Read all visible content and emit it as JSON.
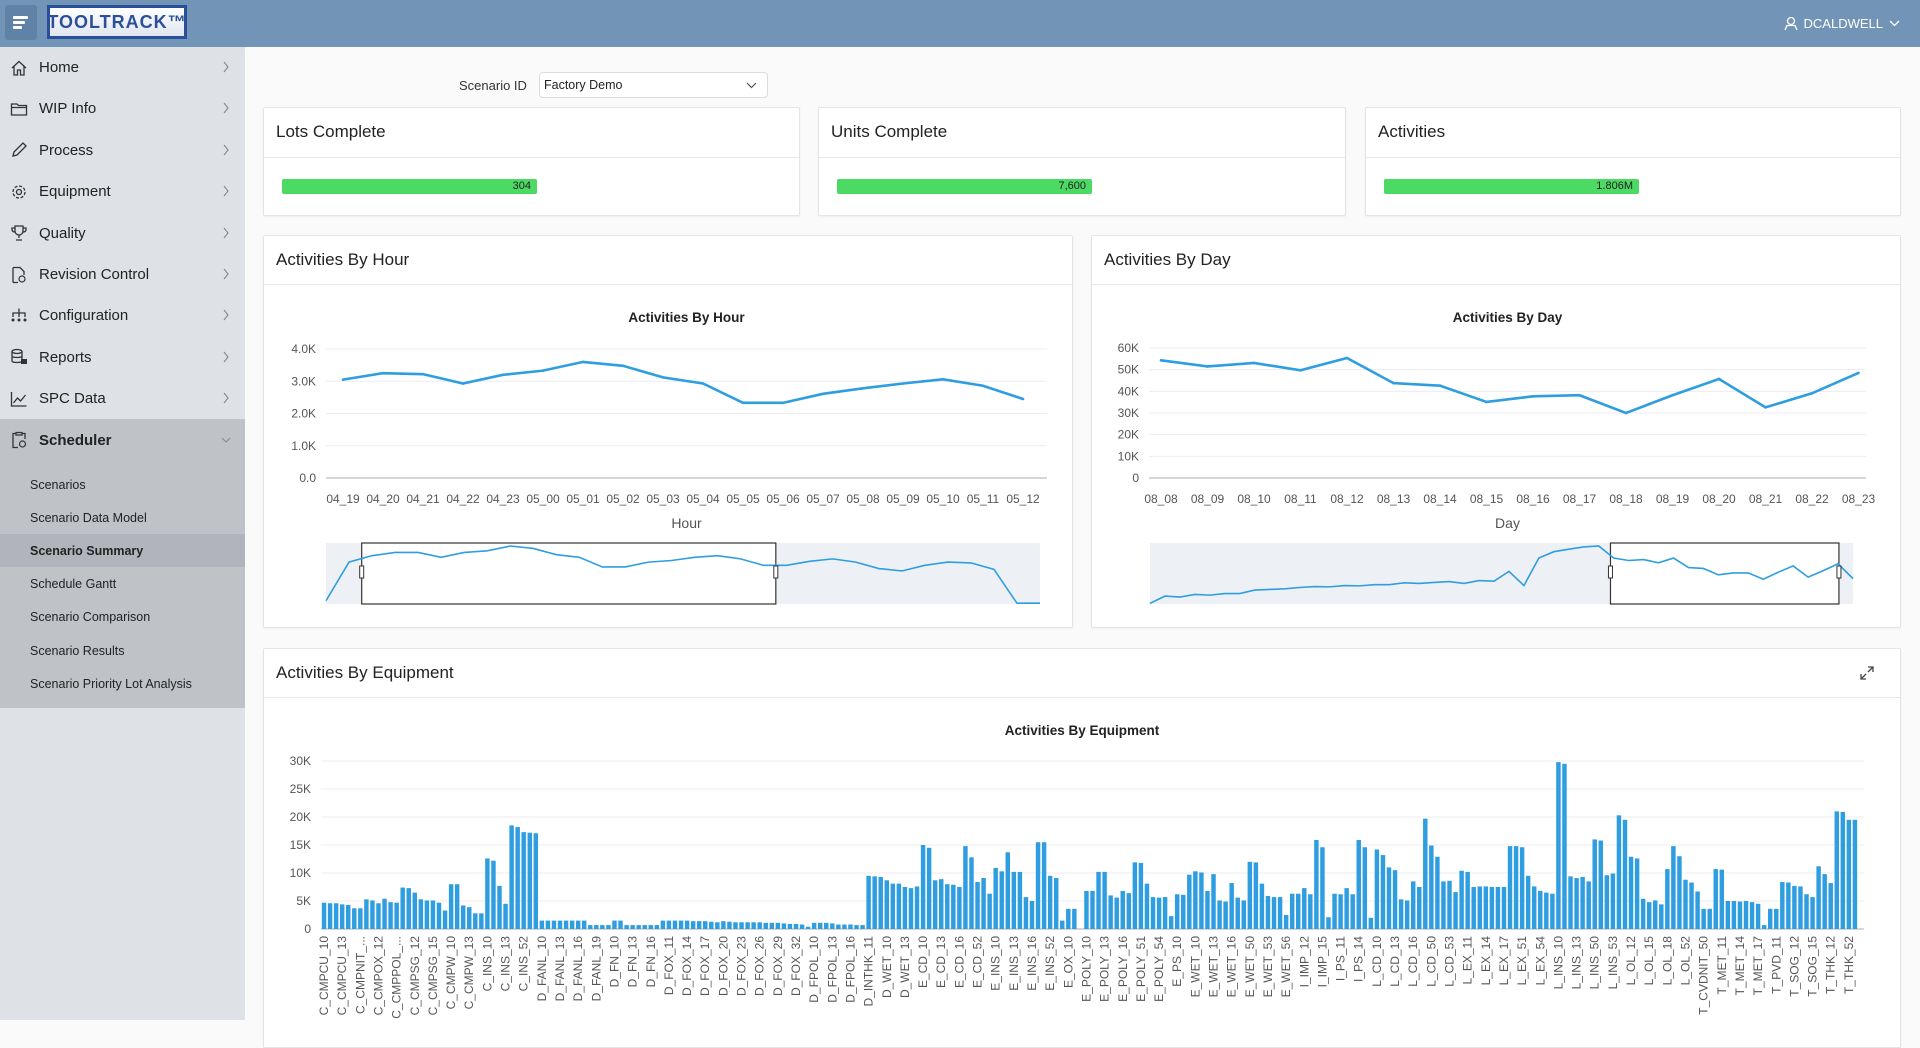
{
  "header": {
    "logo_text": "TOOLTRACK™",
    "user": "DCALDWELL",
    "colors": {
      "header_bg": "#7194b7",
      "accent": "#2e9ee0",
      "kpi_green": "#4cd964"
    }
  },
  "sidebar": {
    "items": [
      {
        "label": "Home",
        "icon": "home-icon"
      },
      {
        "label": "WIP Info",
        "icon": "folder-icon"
      },
      {
        "label": "Process",
        "icon": "pencil-icon"
      },
      {
        "label": "Equipment",
        "icon": "gear-icon"
      },
      {
        "label": "Quality",
        "icon": "trophy-icon"
      },
      {
        "label": "Revision Control",
        "icon": "document-clock-icon"
      },
      {
        "label": "Configuration",
        "icon": "hierarchy-icon"
      },
      {
        "label": "Reports",
        "icon": "report-icon"
      },
      {
        "label": "SPC Data",
        "icon": "line-chart-icon"
      },
      {
        "label": "Scheduler",
        "icon": "clipboard-clock-icon",
        "expanded": true
      }
    ],
    "scheduler_items": [
      "Scenarios",
      "Scenario Data Model",
      "Scenario Summary",
      "Schedule Gantt",
      "Scenario Comparison",
      "Scenario Results",
      "Scenario Priority Lot Analysis"
    ],
    "selected": "Scenario Summary"
  },
  "filter": {
    "label": "Scenario ID",
    "value": "Factory Demo"
  },
  "kpis": [
    {
      "title": "Lots Complete",
      "value": "304",
      "fill_percent": 100
    },
    {
      "title": "Units Complete",
      "value": "7,600",
      "fill_percent": 100
    },
    {
      "title": "Activities",
      "value": "1.806M",
      "fill_percent": 100
    }
  ],
  "chart_data": [
    {
      "card_title": "Activities By Hour",
      "title": "Activities By Hour",
      "type": "line",
      "xlabel": "Hour",
      "ylabel": "",
      "x": [
        "04_19",
        "04_20",
        "04_21",
        "04_22",
        "04_23",
        "05_00",
        "05_01",
        "05_02",
        "05_03",
        "05_04",
        "05_05",
        "05_06",
        "05_07",
        "05_08",
        "05_09",
        "05_10",
        "05_11",
        "05_12"
      ],
      "values": [
        3050,
        3250,
        3220,
        2930,
        3200,
        3330,
        3600,
        3480,
        3120,
        2930,
        2330,
        2330,
        2610,
        2780,
        2930,
        3060,
        2860,
        2450
      ],
      "ylim": [
        0,
        4000
      ],
      "yticks": [
        "0.0",
        "1.0K",
        "2.0K",
        "3.0K",
        "4.0K"
      ],
      "grid": true,
      "navigator": {
        "values": [
          200,
          2600,
          3000,
          3200,
          3200,
          2900,
          3200,
          3300,
          3600,
          3450,
          3060,
          2900,
          2300,
          2300,
          2600,
          2700,
          2900,
          3000,
          2800,
          2400,
          2400,
          2650,
          2800,
          2600,
          2200,
          2050,
          2400,
          2600,
          2550,
          2150,
          50,
          50
        ],
        "window": [
          0.05,
          0.63
        ]
      }
    },
    {
      "card_title": "Activities By Day",
      "title": "Activities By Day",
      "type": "line",
      "xlabel": "Day",
      "ylabel": "",
      "x": [
        "08_08",
        "08_09",
        "08_10",
        "08_11",
        "08_12",
        "08_13",
        "08_14",
        "08_15",
        "08_16",
        "08_17",
        "08_18",
        "08_19",
        "08_20",
        "08_21",
        "08_22",
        "08_23"
      ],
      "values": [
        54300,
        51500,
        53100,
        49700,
        55400,
        43800,
        42600,
        35100,
        37700,
        38200,
        30000,
        38200,
        45700,
        32600,
        39100,
        48500
      ],
      "ylim": [
        0,
        60000
      ],
      "yticks": [
        "0",
        "10K",
        "20K",
        "30K",
        "40K",
        "50K",
        "60K"
      ],
      "grid": true,
      "navigator": {
        "values": [
          700,
          8700,
          7700,
          10500,
          9800,
          11500,
          11500,
          15400,
          16100,
          16800,
          18200,
          19200,
          18900,
          20300,
          20000,
          21300,
          21300,
          23400,
          22700,
          23800,
          24800,
          22700,
          25900,
          25200,
          36000,
          20300,
          50700,
          57700,
          60500,
          63000,
          64000,
          50700,
          48000,
          49000,
          45500,
          50700,
          40200,
          39200,
          32200,
          34300,
          34300,
          27300,
          35000,
          42000,
          29700,
          36700,
          44400,
          28000
        ],
        "window": [
          0.655,
          0.98
        ]
      }
    },
    {
      "card_title": "Activities By Equipment",
      "title": "Activities By Equipment",
      "type": "bar",
      "xlabel": "",
      "ylabel": "",
      "ylim": [
        0,
        30000
      ],
      "yticks": [
        "0",
        "5K",
        "10K",
        "15K",
        "20K",
        "25K",
        "30K"
      ],
      "grid": true,
      "tick_labels": [
        "C_CMPCU_10",
        "C_CMPCU_13",
        "C_CMPNIT_...",
        "C_CMPOX_12",
        "C_CMPPOL_...",
        "C_CMPSG_12",
        "C_CMPSG_15",
        "C_CMPW_10",
        "C_CMPW_13",
        "C_INS_10",
        "C_INS_13",
        "C_INS_52",
        "D_FANL_10",
        "D_FANL_13",
        "D_FANL_16",
        "D_FANL_19",
        "D_FN_10",
        "D_FN_13",
        "D_FN_16",
        "D_FOX_11",
        "D_FOX_14",
        "D_FOX_17",
        "D_FOX_20",
        "D_FOX_23",
        "D_FOX_26",
        "D_FOX_29",
        "D_FOX_32",
        "D_FPOL_10",
        "D_FPOL_13",
        "D_FPOL_16",
        "D_INTHK_11",
        "D_WET_10",
        "D_WET_13",
        "E_CD_10",
        "E_CD_13",
        "E_CD_16",
        "E_CD_52",
        "E_INS_10",
        "E_INS_13",
        "E_INS_16",
        "E_INS_52",
        "E_OX_10",
        "E_POLY_10",
        "E_POLY_13",
        "E_POLY_16",
        "E_POLY_51",
        "E_POLY_54",
        "E_PS_10",
        "E_WET_10",
        "E_WET_13",
        "E_WET_16",
        "E_WET_50",
        "E_WET_53",
        "E_WET_56",
        "I_IMP_12",
        "I_IMP_15",
        "I_PS_11",
        "I_PS_14",
        "L_CD_10",
        "L_CD_13",
        "L_CD_16",
        "L_CD_50",
        "L_CD_53",
        "L_EX_11",
        "L_EX_14",
        "L_EX_17",
        "L_EX_51",
        "L_EX_54",
        "L_INS_10",
        "L_INS_13",
        "L_INS_50",
        "L_INS_53",
        "L_OL_12",
        "L_OL_15",
        "L_OL_18",
        "L_OL_52",
        "T_CVDNIT_50",
        "T_MET_11",
        "T_MET_14",
        "T_MET_17",
        "T_PVD_11",
        "T_SOG_12",
        "T_SOG_15",
        "T_THK_12",
        "T_THK_52"
      ],
      "tick_every": 3,
      "values": [
        4700,
        4600,
        4600,
        4400,
        4300,
        3700,
        3700,
        5300,
        5100,
        4600,
        5400,
        4800,
        4700,
        7400,
        7300,
        6500,
        5300,
        5100,
        5100,
        4700,
        3300,
        8000,
        8000,
        4200,
        3900,
        2800,
        2800,
        12600,
        12200,
        7700,
        4500,
        18500,
        18200,
        17300,
        17200,
        17100,
        1500,
        1500,
        1500,
        1500,
        1500,
        1500,
        1500,
        1500,
        700,
        700,
        700,
        700,
        1500,
        1500,
        700,
        700,
        700,
        700,
        700,
        700,
        1500,
        1500,
        1500,
        1500,
        1500,
        1400,
        1400,
        1400,
        1300,
        1200,
        1400,
        1300,
        1200,
        1200,
        1200,
        1200,
        1200,
        1100,
        1100,
        1100,
        1000,
        900,
        900,
        800,
        400,
        1100,
        1100,
        1100,
        1000,
        800,
        800,
        800,
        700,
        700,
        9500,
        9400,
        9300,
        8700,
        8100,
        8100,
        7500,
        7300,
        7600,
        15000,
        14500,
        8700,
        8900,
        8000,
        7900,
        7500,
        14800,
        12800,
        8400,
        9100,
        6300,
        10900,
        10300,
        13700,
        10200,
        10200,
        5700,
        5000,
        15500,
        15500,
        9500,
        9100,
        1500,
        3600,
        3600,
        0,
        6800,
        6800,
        10200,
        10200,
        6000,
        5600,
        6800,
        6400,
        11900,
        11800,
        8100,
        5700,
        5600,
        5700,
        2300,
        6200,
        6100,
        9700,
        10300,
        10100,
        6800,
        9800,
        5100,
        4900,
        8200,
        5600,
        5100,
        12000,
        11900,
        8100,
        5900,
        5700,
        5700,
        2500,
        6300,
        6300,
        7300,
        6200,
        15900,
        14600,
        2100,
        6300,
        6200,
        7300,
        6200,
        15900,
        14600,
        2000,
        14200,
        13200,
        11000,
        10500,
        5300,
        5100,
        8500,
        7500,
        19700,
        14900,
        12900,
        8500,
        8600,
        6600,
        10400,
        10200,
        7500,
        7600,
        7600,
        7500,
        7500,
        7500,
        14800,
        14800,
        14600,
        9500,
        7600,
        6800,
        6500,
        6300,
        29800,
        29500,
        9400,
        9100,
        9300,
        8500,
        16000,
        15800,
        9600,
        9900,
        20300,
        19500,
        12900,
        12600,
        5400,
        4800,
        5100,
        4400,
        10700,
        14800,
        13000,
        8800,
        8300,
        6700,
        3600,
        3600,
        10700,
        10600,
        5000,
        5000,
        4900,
        5000,
        4800,
        4500,
        700,
        3600,
        3600,
        8400,
        8300,
        7700,
        7600,
        6200,
        5700,
        11200,
        9800,
        8200,
        21000,
        20900,
        19500,
        19500
      ]
    }
  ]
}
